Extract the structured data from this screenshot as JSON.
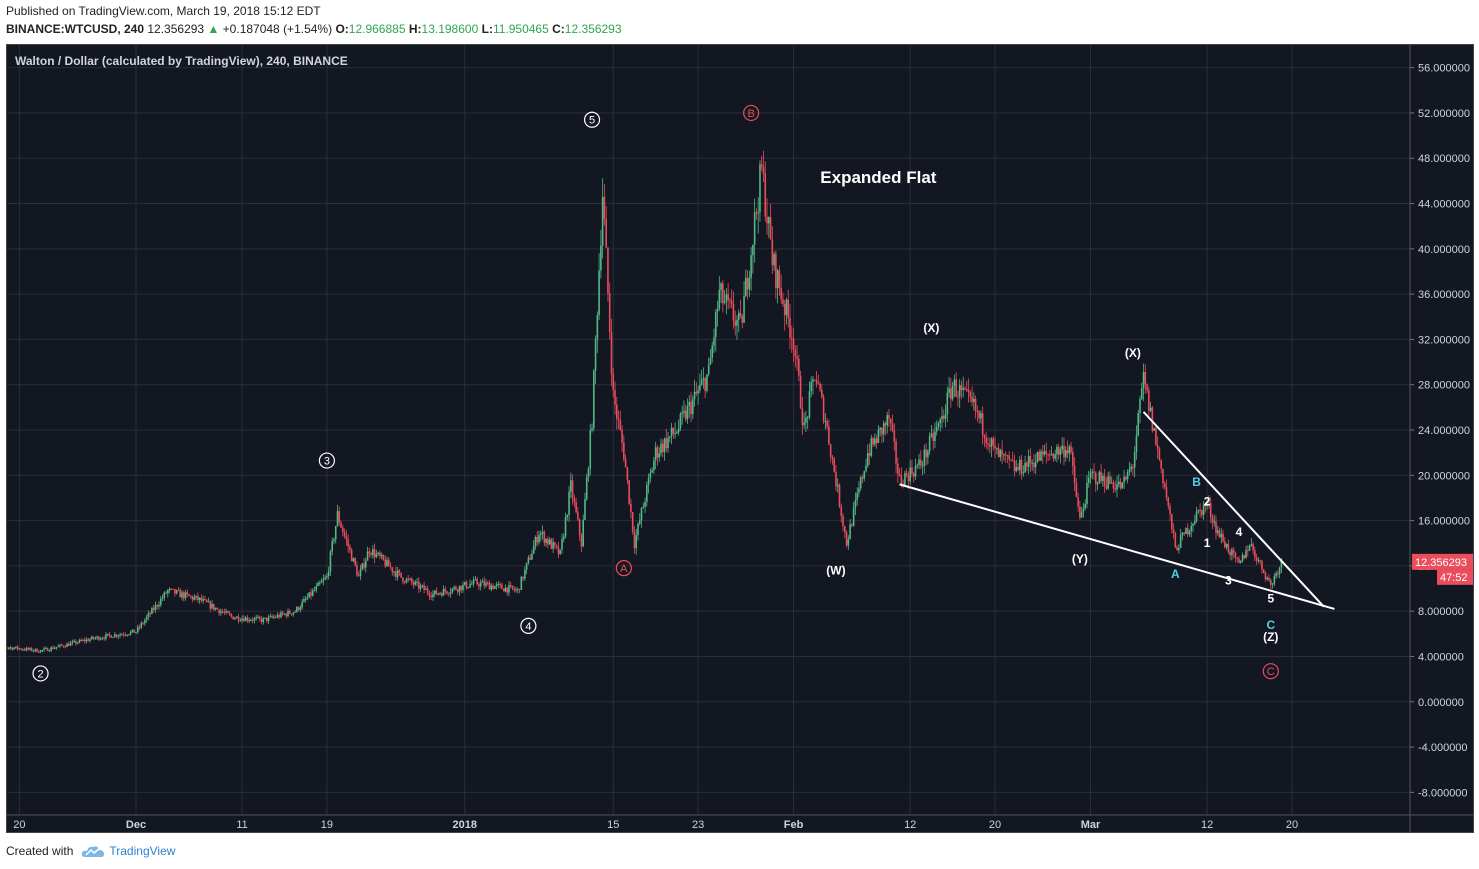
{
  "header": {
    "published": "Published on TradingView.com, March 19, 2018 15:12 EDT",
    "symbol": "BINANCE:WTCUSD, 240",
    "last": "12.356293",
    "change_icon": "triangle-up-icon",
    "change": "+0.187048 (+1.54%)",
    "o_label": "O:",
    "o_val": "12.966885",
    "h_label": "H:",
    "h_val": "13.198600",
    "l_label": "L:",
    "l_val": "11.950465",
    "c_label": "C:",
    "c_val": "12.356293"
  },
  "legend": "Walton / Dollar (calculated by TradingView), 240, BINANCE",
  "footer": {
    "created_with": "Created with",
    "brand": "TradingView",
    "logo_icon": "tradingview-cloud-icon"
  },
  "colors": {
    "bg": "#131722",
    "up": "#53b987",
    "down": "#eb4d5c",
    "grid": "#2a2e39",
    "price_tag": "#eb4d5c"
  },
  "chart_data": {
    "type": "candlestick",
    "title": "Expanded Flat",
    "ylim": [
      -10,
      58
    ],
    "y_ticks": [
      "56.000000",
      "52.000000",
      "48.000000",
      "44.000000",
      "40.000000",
      "36.000000",
      "32.000000",
      "28.000000",
      "24.000000",
      "20.000000",
      "16.000000",
      "12.000000",
      "8.000000",
      "4.000000",
      "0.000000",
      "-4.000000",
      "-8.000000"
    ],
    "x_ticks": [
      "20",
      "Dec",
      "11",
      "19",
      "2018",
      "15",
      "23",
      "Feb",
      "12",
      "20",
      "Mar",
      "12",
      "20"
    ],
    "price_tag": {
      "value": 12.356293,
      "label": "12.356293",
      "countdown": "47:52"
    },
    "price_path": [
      {
        "d": "Nov 17",
        "v": 5.0
      },
      {
        "d": "Nov 22",
        "v": 4.5
      },
      {
        "d": "Nov 27",
        "v": 5.6
      },
      {
        "d": "Dec 1",
        "v": 6.2
      },
      {
        "d": "Dec 4",
        "v": 9.8
      },
      {
        "d": "Dec 7",
        "v": 9.0
      },
      {
        "d": "Dec 10",
        "v": 7.5
      },
      {
        "d": "Dec 13",
        "v": 7.2
      },
      {
        "d": "Dec 16",
        "v": 8.0
      },
      {
        "d": "Dec 19",
        "v": 11.0
      },
      {
        "d": "Dec 20",
        "v": 16.5
      },
      {
        "d": "Dec 22",
        "v": 11.0
      },
      {
        "d": "Dec 23",
        "v": 13.5
      },
      {
        "d": "Dec 26",
        "v": 11.0
      },
      {
        "d": "Dec 29",
        "v": 9.5
      },
      {
        "d": "Jan 2",
        "v": 10.5
      },
      {
        "d": "Jan 5",
        "v": 10.0
      },
      {
        "d": "Jan 6",
        "v": 9.8
      },
      {
        "d": "Jan 8",
        "v": 15.0
      },
      {
        "d": "Jan 10",
        "v": 13.0
      },
      {
        "d": "Jan 11",
        "v": 19.0
      },
      {
        "d": "Jan 12",
        "v": 14.0
      },
      {
        "d": "Jan 13",
        "v": 25.0
      },
      {
        "d": "Jan 14",
        "v": 45.0
      },
      {
        "d": "Jan 15",
        "v": 27.0
      },
      {
        "d": "Jan 16",
        "v": 22.0
      },
      {
        "d": "Jan 17",
        "v": 14.0
      },
      {
        "d": "Jan 19",
        "v": 22.0
      },
      {
        "d": "Jan 21",
        "v": 24.0
      },
      {
        "d": "Jan 24",
        "v": 29.0
      },
      {
        "d": "Jan 25",
        "v": 36.0
      },
      {
        "d": "Jan 27",
        "v": 33.0
      },
      {
        "d": "Jan 29",
        "v": 47.0
      },
      {
        "d": "Jan 30",
        "v": 39.0
      },
      {
        "d": "Feb 1",
        "v": 32.0
      },
      {
        "d": "Feb 2",
        "v": 24.0
      },
      {
        "d": "Feb 3",
        "v": 29.0
      },
      {
        "d": "Feb 4",
        "v": 25.0
      },
      {
        "d": "Feb 6",
        "v": 14.0
      },
      {
        "d": "Feb 8",
        "v": 22.0
      },
      {
        "d": "Feb 10",
        "v": 25.0
      },
      {
        "d": "Feb 11",
        "v": 19.5
      },
      {
        "d": "Feb 13",
        "v": 21.0
      },
      {
        "d": "Feb 15",
        "v": 25.0
      },
      {
        "d": "Feb 16",
        "v": 28.0
      },
      {
        "d": "Feb 18",
        "v": 26.0
      },
      {
        "d": "Feb 20",
        "v": 22.0
      },
      {
        "d": "Feb 22",
        "v": 20.5
      },
      {
        "d": "Feb 24",
        "v": 21.5
      },
      {
        "d": "Feb 27",
        "v": 22.5
      },
      {
        "d": "Feb 28",
        "v": 16.0
      },
      {
        "d": "Mar 1",
        "v": 20.0
      },
      {
        "d": "Mar 4",
        "v": 19.0
      },
      {
        "d": "Mar 5",
        "v": 21.0
      },
      {
        "d": "Mar 6",
        "v": 28.5
      },
      {
        "d": "Mar 8",
        "v": 19.0
      },
      {
        "d": "Mar 9",
        "v": 13.5
      },
      {
        "d": "Mar 11",
        "v": 16.5
      },
      {
        "d": "Mar 12",
        "v": 17.5
      },
      {
        "d": "Mar 13",
        "v": 15.0
      },
      {
        "d": "Mar 15",
        "v": 12.0
      },
      {
        "d": "Mar 16",
        "v": 14.0
      },
      {
        "d": "Mar 18",
        "v": 10.3
      },
      {
        "d": "Mar 19",
        "v": 12.4
      }
    ],
    "trendlines": [
      {
        "from": {
          "d": "Feb 11",
          "v": 19.2
        },
        "to": {
          "d": "Mar 24",
          "v": 8.2
        }
      },
      {
        "from": {
          "d": "Mar 6",
          "v": 25.6
        },
        "to": {
          "d": "Mar 23",
          "v": 8.4
        }
      }
    ],
    "annotations": [
      {
        "text": "2",
        "circled": true,
        "color": "#ffffff",
        "d": "Nov 22",
        "v": 2.5
      },
      {
        "text": "3",
        "circled": true,
        "color": "#ffffff",
        "d": "Dec 19",
        "v": 21.3
      },
      {
        "text": "4",
        "circled": true,
        "color": "#ffffff",
        "d": "Jan 7",
        "v": 6.7
      },
      {
        "text": "5",
        "circled": true,
        "color": "#ffffff",
        "d": "Jan 13",
        "v": 51.4
      },
      {
        "text": "A",
        "circled": true,
        "color": "#eb4d5c",
        "d": "Jan 16",
        "v": 11.8
      },
      {
        "text": "B",
        "circled": true,
        "color": "#eb4d5c",
        "d": "Jan 28",
        "v": 52.0
      },
      {
        "text": "C",
        "circled": true,
        "color": "#eb4d5c",
        "d": "Mar 18",
        "v": 2.7
      },
      {
        "text": "(W)",
        "circled": false,
        "color": "#ffffff",
        "d": "Feb 5",
        "v": 11.6
      },
      {
        "text": "(X)",
        "circled": false,
        "color": "#ffffff",
        "d": "Feb 14",
        "v": 33.0
      },
      {
        "text": "(Y)",
        "circled": false,
        "color": "#ffffff",
        "d": "Feb 28",
        "v": 12.6
      },
      {
        "text": "(X)",
        "circled": false,
        "color": "#ffffff",
        "d": "Mar 5",
        "v": 30.8
      },
      {
        "text": "(Z)",
        "circled": false,
        "color": "#ffffff",
        "d": "Mar 18",
        "v": 5.7
      },
      {
        "text": "A",
        "circled": false,
        "color": "#4fd1e8",
        "d": "Mar 9",
        "v": 11.3
      },
      {
        "text": "B",
        "circled": false,
        "color": "#4fd1e8",
        "d": "Mar 11",
        "v": 19.4
      },
      {
        "text": "C",
        "circled": false,
        "color": "#4fd1e8",
        "d": "Mar 18",
        "v": 6.8
      },
      {
        "text": "1",
        "circled": false,
        "color": "#ffffff",
        "d": "Mar 12",
        "v": 14.0
      },
      {
        "text": "2",
        "circled": false,
        "color": "#ffffff",
        "d": "Mar 12",
        "v": 17.7
      },
      {
        "text": "3",
        "circled": false,
        "color": "#ffffff",
        "d": "Mar 14",
        "v": 10.7
      },
      {
        "text": "4",
        "circled": false,
        "color": "#ffffff",
        "d": "Mar 15",
        "v": 15.0
      },
      {
        "text": "5",
        "circled": false,
        "color": "#ffffff",
        "d": "Mar 18",
        "v": 9.1
      }
    ]
  }
}
